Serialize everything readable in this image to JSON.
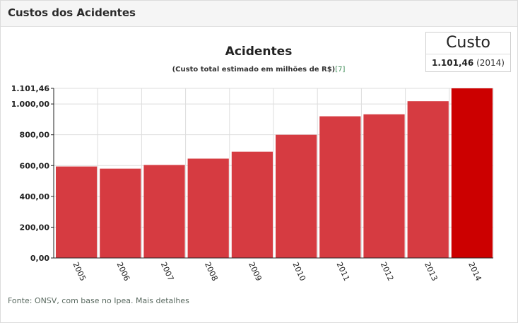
{
  "panel": {
    "title": "Custos dos Acidentes"
  },
  "stat": {
    "label": "Custo",
    "value": "1.101,46",
    "year": "(2014)"
  },
  "source": {
    "text": "Fonte: ONSV, com base no Ipea.",
    "link": "Mais detalhes"
  },
  "colors": {
    "bar": "#d63b41",
    "bar_highlight": "#cc0000",
    "grid": "#dddddd",
    "axis": "#222222"
  },
  "chart_data": {
    "type": "bar",
    "title": "Acidentes",
    "subtitle": "(Custo total estimado em milhões de R$)",
    "subtitle_ref": "[7]",
    "categories": [
      "2005",
      "2006",
      "2007",
      "2008",
      "2009",
      "2010",
      "2011",
      "2012",
      "2013",
      "2014"
    ],
    "values": [
      594,
      580,
      604,
      645,
      690,
      800,
      920,
      933,
      1018,
      1101.46
    ],
    "highlight_index": 9,
    "ylim": [
      0,
      1101.46
    ],
    "yticks": [
      0,
      200,
      400,
      600,
      800,
      1000,
      1101.46
    ],
    "ytick_labels": [
      "0,00",
      "200,00",
      "400,00",
      "600,00",
      "800,00",
      "1.000,00",
      "1.101,46"
    ],
    "grid": true,
    "xlabel": "",
    "ylabel": ""
  }
}
